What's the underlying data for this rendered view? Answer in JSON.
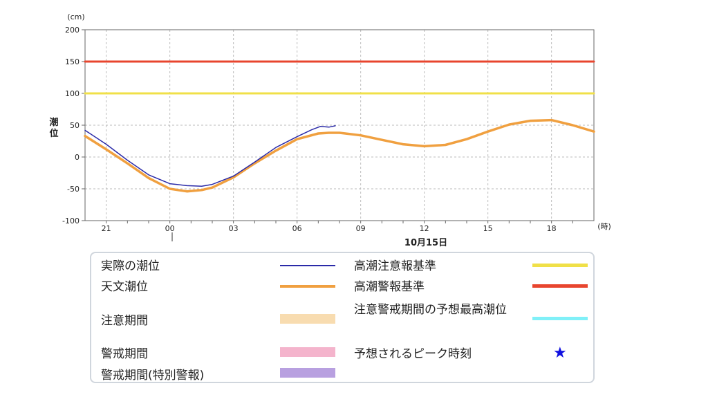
{
  "chart_data": {
    "type": "line",
    "y_unit": "(cm)",
    "ylabel": "潮位",
    "x_unit": "(時)",
    "date_label": "10月15日",
    "ylim": [
      -100,
      200
    ],
    "y_ticks": [
      200,
      150,
      100,
      50,
      0,
      -50,
      -100
    ],
    "x_ticks": [
      "21",
      "00",
      "03",
      "06",
      "09",
      "12",
      "15",
      "18"
    ],
    "x_tick_hours": [
      21,
      24,
      27,
      30,
      33,
      36,
      39,
      42
    ],
    "x_range_hours": [
      20,
      44
    ],
    "grid": true,
    "series": [
      {
        "name": "高潮警報基準",
        "color": "#e8452e",
        "x": [
          20,
          44
        ],
        "values": [
          150,
          150
        ]
      },
      {
        "name": "高潮注意報基準",
        "color": "#f0e048",
        "x": [
          20,
          44
        ],
        "values": [
          100,
          100
        ]
      },
      {
        "name": "天文潮位",
        "color": "#f0a040",
        "x": [
          20,
          21,
          22,
          23,
          24,
          24.8,
          25.5,
          26,
          27,
          28,
          29,
          30,
          31,
          31.5,
          32,
          33,
          34,
          35,
          36,
          37,
          38,
          39,
          40,
          41,
          42,
          43,
          44
        ],
        "values": [
          33,
          12,
          -10,
          -33,
          -50,
          -54,
          -52,
          -48,
          -32,
          -10,
          10,
          28,
          37,
          38,
          38,
          34,
          27,
          20,
          17,
          19,
          28,
          40,
          51,
          57,
          58,
          50,
          40
        ]
      },
      {
        "name": "実際の潮位",
        "color": "#2a2aa8",
        "x": [
          20,
          21,
          22,
          23,
          24,
          24.8,
          25.5,
          26,
          27,
          28,
          29,
          30,
          30.7,
          31.1,
          31.5,
          31.8
        ],
        "values": [
          42,
          20,
          -5,
          -28,
          -42,
          -45,
          -46,
          -43,
          -30,
          -8,
          15,
          32,
          43,
          48,
          47,
          49
        ]
      }
    ]
  },
  "legend": {
    "actual": "実際の潮位",
    "astro": "天文潮位",
    "caution_period": "注意期間",
    "warning_period": "警戒期間",
    "special_period": "警戒期間(特別警報)",
    "caution_std": "高潮注意報基準",
    "warning_std": "高潮警報基準",
    "forecast_peak": "注意警戒期間の予想最高潮位",
    "peak_time": "予想されるピーク時刻",
    "colors": {
      "actual": "#2a2aa8",
      "astro": "#f0a040",
      "caution_period": "#f8dcb0",
      "warning_period": "#f4b4cc",
      "special_period": "#b8a0e0",
      "caution_std": "#f0e048",
      "warning_std": "#e8452e",
      "forecast_peak": "#80f0f8",
      "peak_star": "#1010e0"
    }
  }
}
